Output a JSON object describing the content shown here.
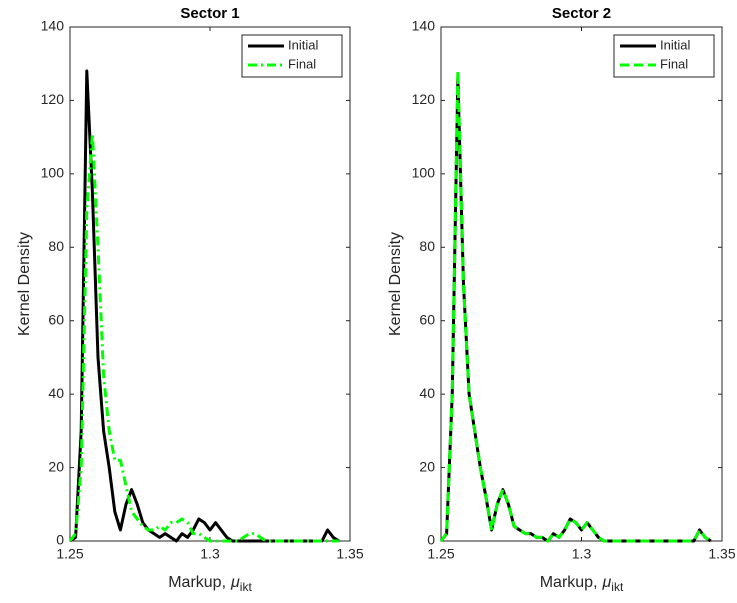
{
  "chart_data": [
    {
      "type": "line",
      "title": "Sector 1",
      "ylabel": "Kernel Density",
      "xlabel": {
        "text": "Markup,",
        "symbol": "μ",
        "subscript": "ikt"
      },
      "x": [
        1.25,
        1.252,
        1.254,
        1.256,
        1.258,
        1.26,
        1.262,
        1.264,
        1.266,
        1.268,
        1.27,
        1.272,
        1.274,
        1.276,
        1.278,
        1.28,
        1.282,
        1.284,
        1.286,
        1.288,
        1.29,
        1.292,
        1.294,
        1.296,
        1.298,
        1.3,
        1.302,
        1.304,
        1.306,
        1.308,
        1.31,
        1.312,
        1.314,
        1.316,
        1.318,
        1.32,
        1.322,
        1.324,
        1.326,
        1.328,
        1.33,
        1.332,
        1.334,
        1.336,
        1.338,
        1.34,
        1.342,
        1.344,
        1.346
      ],
      "xlim": [
        1.25,
        1.35
      ],
      "xticks": [
        1.25,
        1.3,
        1.35
      ],
      "ylim": [
        0,
        140
      ],
      "yticks": [
        0,
        20,
        40,
        60,
        80,
        100,
        120,
        140
      ],
      "legend": "upper right",
      "series": [
        {
          "name": "Initial",
          "color": "#000000",
          "dash": "solid",
          "values": [
            0,
            1,
            30,
            128,
            95,
            50,
            30,
            20,
            8,
            3,
            10,
            14,
            10,
            5,
            3,
            2,
            1,
            2,
            1,
            0,
            2,
            1,
            3,
            6,
            5,
            3,
            5,
            3,
            1,
            0,
            0,
            0,
            0,
            0,
            0,
            0,
            0,
            0,
            0,
            0,
            0,
            0,
            0,
            0,
            0,
            0,
            3,
            1,
            0
          ]
        },
        {
          "name": "Final",
          "color": "#00ff00",
          "dash": "dashdot",
          "values": [
            0,
            2,
            20,
            90,
            111,
            80,
            45,
            30,
            22,
            22,
            15,
            8,
            6,
            4,
            3,
            3,
            4,
            3,
            5,
            5,
            6,
            5,
            2,
            2,
            1,
            0,
            0,
            0,
            0,
            0,
            0,
            1,
            2,
            2,
            1,
            0,
            0,
            0,
            0,
            0,
            0,
            0,
            0,
            0,
            0,
            0,
            0,
            0,
            0
          ]
        }
      ]
    },
    {
      "type": "line",
      "title": "Sector 2",
      "ylabel": "Kernel Density",
      "xlabel": {
        "text": "Markup,",
        "symbol": "μ",
        "subscript": "ikt"
      },
      "x": [
        1.25,
        1.252,
        1.254,
        1.256,
        1.258,
        1.26,
        1.262,
        1.264,
        1.266,
        1.268,
        1.27,
        1.272,
        1.274,
        1.276,
        1.278,
        1.28,
        1.282,
        1.284,
        1.286,
        1.288,
        1.29,
        1.292,
        1.294,
        1.296,
        1.298,
        1.3,
        1.302,
        1.304,
        1.306,
        1.308,
        1.31,
        1.312,
        1.314,
        1.316,
        1.318,
        1.32,
        1.322,
        1.324,
        1.326,
        1.328,
        1.33,
        1.332,
        1.334,
        1.336,
        1.338,
        1.34,
        1.342,
        1.344,
        1.346
      ],
      "xlim": [
        1.25,
        1.35
      ],
      "xticks": [
        1.25,
        1.3,
        1.35
      ],
      "ylim": [
        0,
        140
      ],
      "yticks": [
        0,
        20,
        40,
        60,
        80,
        100,
        120,
        140
      ],
      "legend": "upper right",
      "series": [
        {
          "name": "Initial",
          "color": "#000000",
          "dash": "solid",
          "values": [
            0,
            2,
            40,
            126,
            70,
            40,
            30,
            20,
            12,
            3,
            10,
            14,
            10,
            4,
            3,
            2,
            2,
            1,
            1,
            0,
            2,
            1,
            3,
            6,
            5,
            3,
            5,
            3,
            1,
            0,
            0,
            0,
            0,
            0,
            0,
            0,
            0,
            0,
            0,
            0,
            0,
            0,
            0,
            0,
            0,
            0,
            3,
            1,
            0
          ]
        },
        {
          "name": "Final",
          "color": "#00ff00",
          "dash": "dash",
          "values": [
            0,
            2,
            40,
            128,
            70,
            40,
            30,
            20,
            12,
            3,
            10,
            14,
            10,
            4,
            3,
            2,
            2,
            1,
            1,
            0,
            2,
            1,
            3,
            6,
            5,
            3,
            5,
            3,
            1,
            0,
            0,
            0,
            0,
            0,
            0,
            0,
            0,
            0,
            0,
            0,
            0,
            0,
            0,
            0,
            0,
            0,
            3,
            1,
            0
          ]
        }
      ]
    }
  ]
}
